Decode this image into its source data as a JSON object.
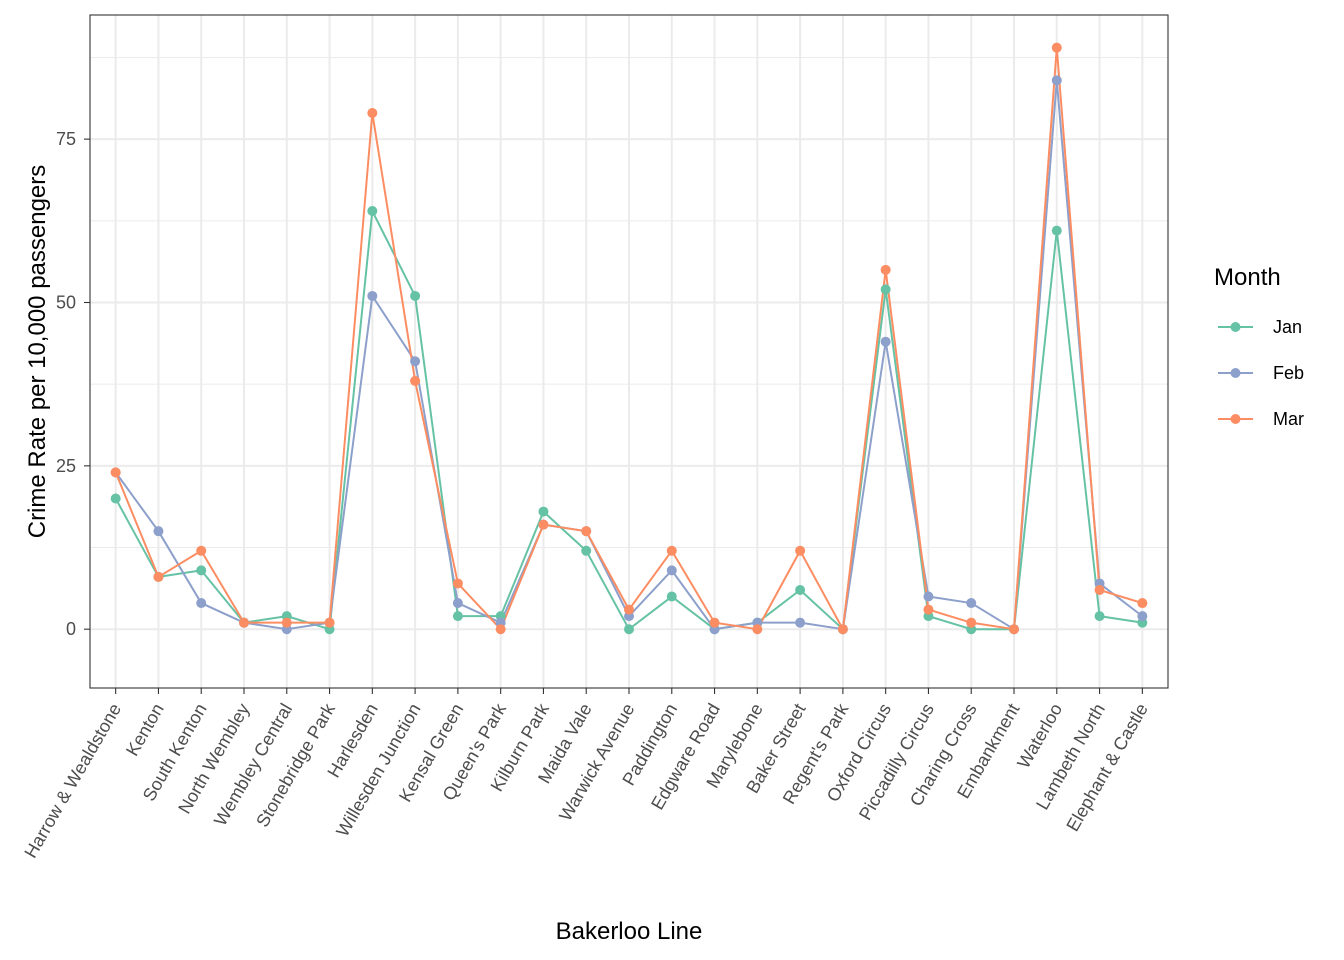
{
  "chart_data": {
    "type": "line",
    "xlabel": "Bakerloo Line",
    "ylabel": "Crime Rate per 10,000 passengers",
    "ylim": [
      -9,
      94
    ],
    "yticks": [
      0,
      25,
      50,
      75
    ],
    "grid": true,
    "legend_title": "Month",
    "legend_position": "right",
    "categories": [
      "Harrow & Wealdstone",
      "Kenton",
      "South Kenton",
      "North Wembley",
      "Wembley Central",
      "Stonebridge Park",
      "Harlesden",
      "Willesden Junction",
      "Kensal Green",
      "Queen's Park",
      "Kilburn Park",
      "Maida Vale",
      "Warwick Avenue",
      "Paddington",
      "Edgware Road",
      "Marylebone",
      "Baker Street",
      "Regent's Park",
      "Oxford Circus",
      "Piccadilly Circus",
      "Charing Cross",
      "Embankment",
      "Waterloo",
      "Lambeth North",
      "Elephant & Castle"
    ],
    "series": [
      {
        "name": "Jan",
        "color": "#66c2a5",
        "values": [
          20,
          8,
          9,
          1,
          2,
          0,
          64,
          51,
          2,
          2,
          18,
          12,
          0,
          5,
          0,
          1,
          6,
          0,
          52,
          2,
          0,
          0,
          61,
          2,
          1
        ]
      },
      {
        "name": "Feb",
        "color": "#8da0cb",
        "values": [
          24,
          15,
          4,
          1,
          0,
          1,
          51,
          41,
          4,
          1,
          16,
          15,
          2,
          9,
          0,
          1,
          1,
          0,
          44,
          5,
          4,
          0,
          84,
          7,
          2
        ]
      },
      {
        "name": "Mar",
        "color": "#fc8d62",
        "values": [
          24,
          8,
          12,
          1,
          1,
          1,
          79,
          38,
          7,
          0,
          16,
          15,
          3,
          12,
          1,
          0,
          12,
          0,
          55,
          3,
          1,
          0,
          89,
          6,
          4
        ]
      }
    ]
  }
}
